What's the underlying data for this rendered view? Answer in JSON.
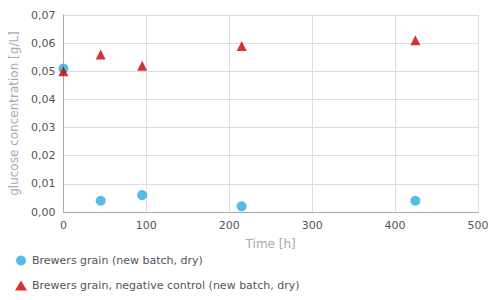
{
  "chart_data": {
    "type": "scatter",
    "xlabel": "Time [h]",
    "ylabel": "glucose concentration [g/L]",
    "x": [
      0,
      45,
      95,
      215,
      424.5
    ],
    "series": [
      {
        "name": "Brewers grain (new batch, dry)",
        "color": "#29ABE2",
        "marker": "circle",
        "values": [
          0.051,
          0.004,
          0.006,
          0.002,
          0.004
        ]
      },
      {
        "name": "Brewers grain, negative control (new batch, dry)",
        "color": "#CC0000",
        "marker": "triangle",
        "values": [
          0.05,
          0.056,
          0.052,
          0.059,
          0.061
        ]
      }
    ],
    "xlim": [
      0,
      500
    ],
    "ylim": [
      0,
      0.07
    ],
    "xticks": [
      0,
      100,
      200,
      300,
      400,
      500
    ],
    "yticks": [
      {
        "value": 0,
        "label": "0,00"
      },
      {
        "value": 0.01,
        "label": "0,01"
      },
      {
        "value": 0.02,
        "label": "0,02"
      },
      {
        "value": 0.03,
        "label": "0,03"
      },
      {
        "value": 0.04,
        "label": "0,04"
      },
      {
        "value": 0.05,
        "label": "0,05"
      },
      {
        "value": 0.06,
        "label": "0,06"
      },
      {
        "value": 0.07,
        "label": "0,07"
      }
    ],
    "grid": true,
    "legend": "lower left"
  }
}
